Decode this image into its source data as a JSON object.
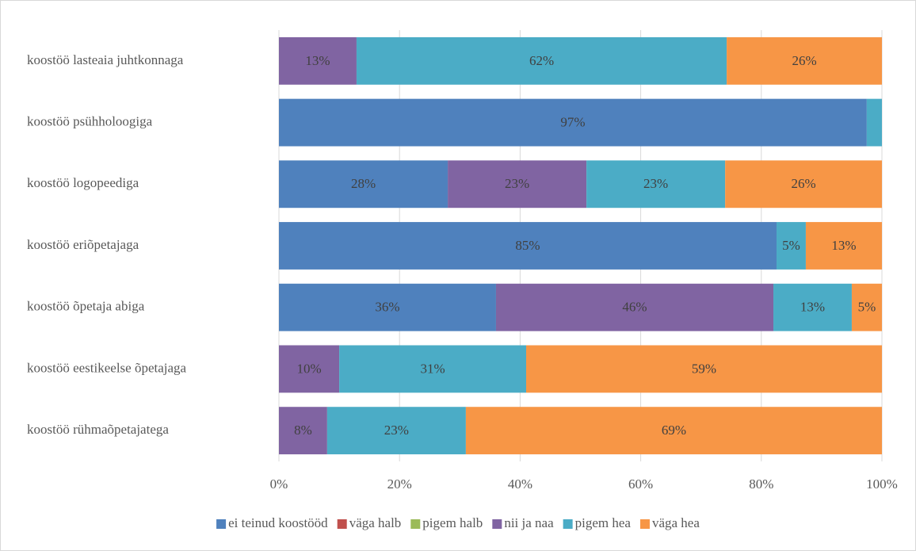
{
  "chart_data": {
    "type": "bar",
    "orientation": "horizontal",
    "stacking": "percent",
    "categories": [
      "koostöö lasteaia juhtkonnaga",
      "koostöö psühholoogiga",
      "koostöö logopeediga",
      "koostöö eriõpetajaga",
      "koostöö õpetaja abiga",
      "koostöö eestikeelse õpetajaga",
      "koostöö rühmaõpetajatega"
    ],
    "series": [
      {
        "name": "ei teinud koostööd",
        "color": "#4f81bd",
        "values": [
          0,
          97,
          28,
          85,
          36,
          0,
          0
        ],
        "value_labels": [
          null,
          "97%",
          "28%",
          "85%",
          "36%",
          null,
          null
        ]
      },
      {
        "name": "väga halb",
        "color": "#c0504d",
        "values": [
          0,
          0,
          0,
          0,
          0,
          0,
          0
        ]
      },
      {
        "name": "pigem halb",
        "color": "#9bbb59",
        "values": [
          0,
          0,
          0,
          0,
          0,
          0,
          0
        ]
      },
      {
        "name": "nii ja naa",
        "color": "#8064a2",
        "values": [
          13,
          0,
          23,
          0,
          46,
          10,
          8
        ],
        "value_labels": [
          "13%",
          null,
          "23%",
          null,
          "46%",
          "10%",
          "8%"
        ]
      },
      {
        "name": "pigem hea",
        "color": "#4bacc6",
        "values": [
          62,
          2.5,
          23,
          5,
          13,
          31,
          23
        ],
        "value_labels": [
          "62%",
          null,
          "23%",
          "5%",
          "13%",
          "31%",
          "23%"
        ]
      },
      {
        "name": "väga hea",
        "color": "#f79646",
        "values": [
          26,
          0,
          26,
          13,
          5,
          59,
          69
        ],
        "value_labels": [
          "26%",
          null,
          "26%",
          "13%",
          "5%",
          "59%",
          "69%"
        ]
      }
    ],
    "xlim": [
      0,
      100
    ],
    "xticks": [
      {
        "value": 0,
        "label": "0%"
      },
      {
        "value": 20,
        "label": "20%"
      },
      {
        "value": 40,
        "label": "40%"
      },
      {
        "value": 60,
        "label": "60%"
      },
      {
        "value": 80,
        "label": "80%"
      },
      {
        "value": 100,
        "label": "100%"
      }
    ],
    "grid": true,
    "legend": "bottom"
  }
}
